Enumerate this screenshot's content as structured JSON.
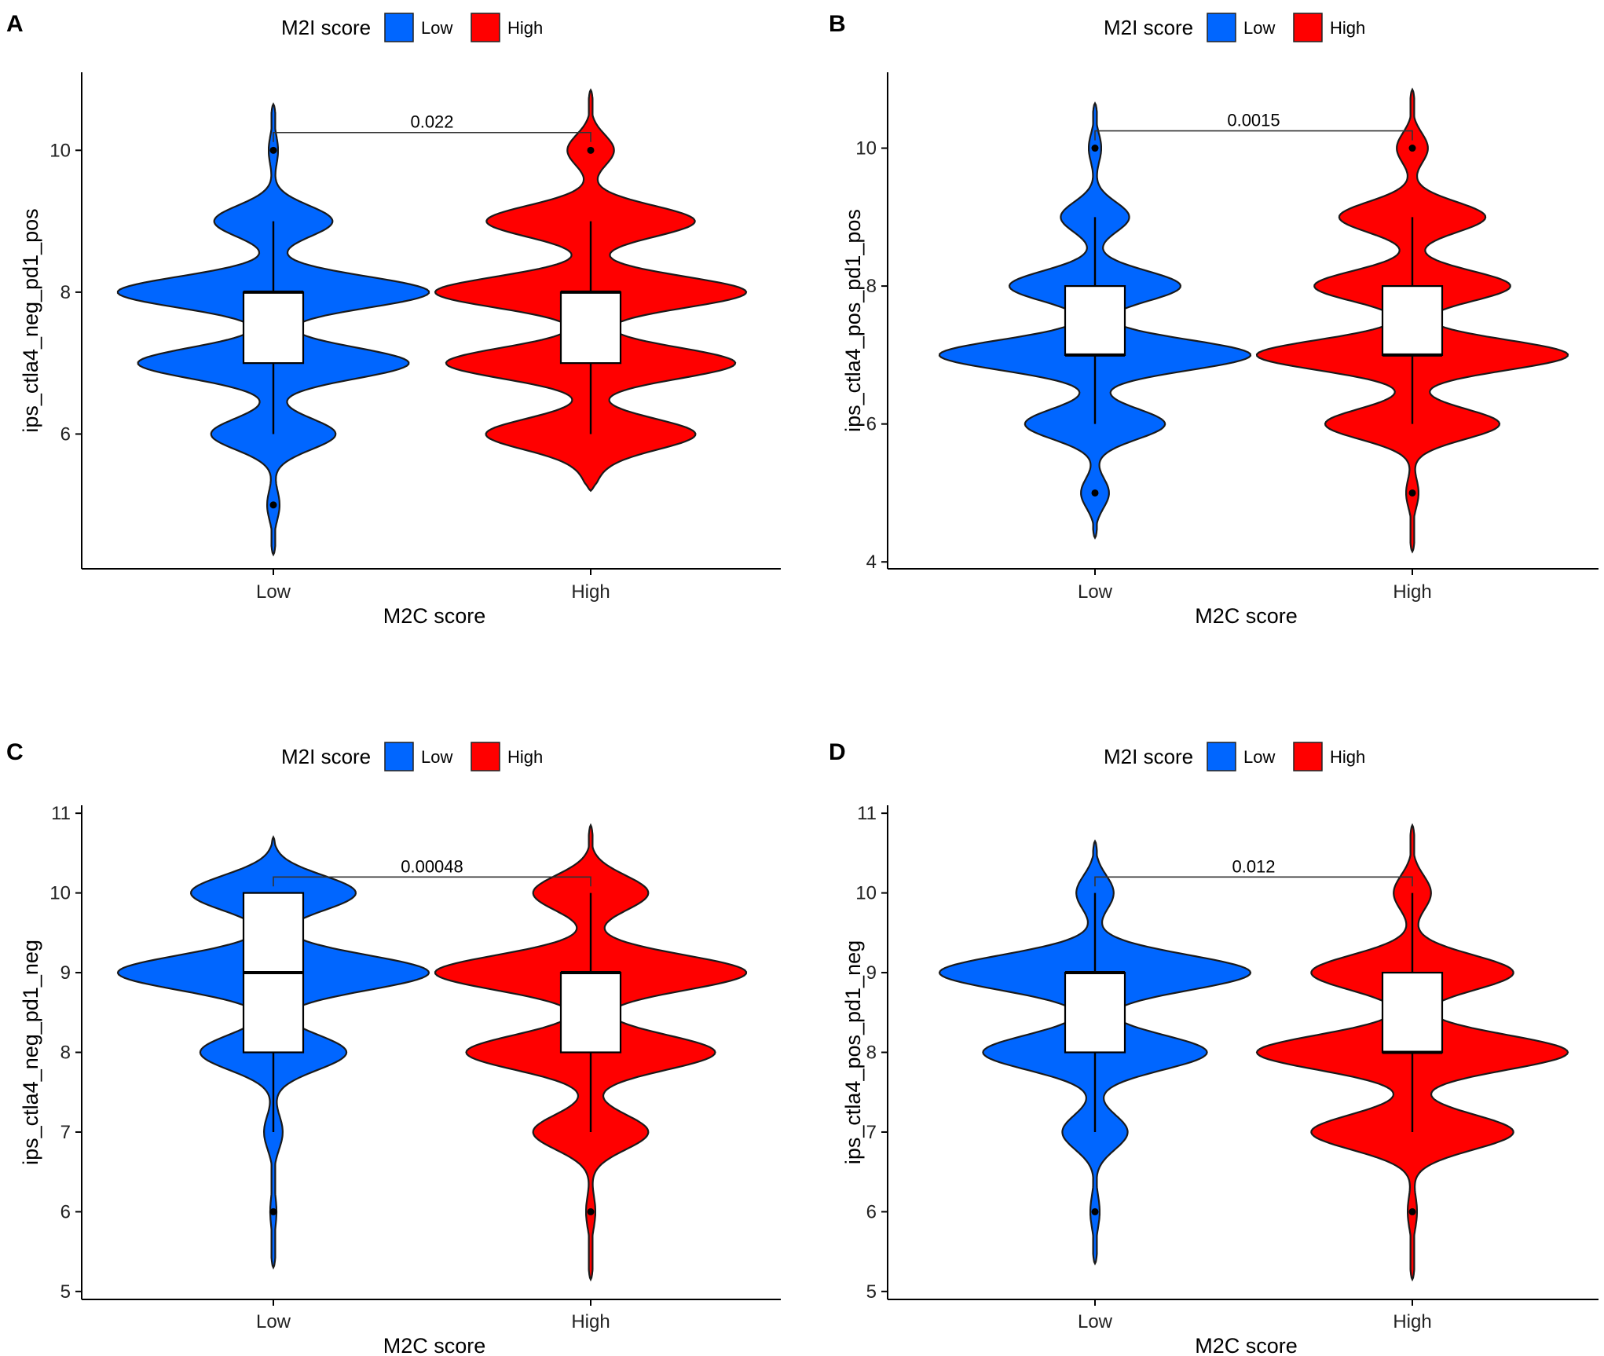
{
  "colors": {
    "Low": "#0066FF",
    "High": "#FF0000"
  },
  "legend": {
    "title": "M2I score",
    "entries": [
      "Low",
      "High"
    ]
  },
  "chart_data": [
    {
      "panel": "A",
      "type": "violin",
      "legend_title": "M2I score",
      "legend_entries": [
        "Low",
        "High"
      ],
      "xlabel": "M2C score",
      "ylabel": "ips_ctla4_neg_pd1_pos",
      "categories": [
        "Low",
        "High"
      ],
      "ylim": [
        4.1,
        11.1
      ],
      "yticks": [
        6,
        8,
        10
      ],
      "pvalue": "0.022",
      "bracket_y": 10.25,
      "groups": [
        {
          "name": "Low",
          "color": "#0066FF",
          "min": 4.3,
          "max": 10.65,
          "modes": [
            [
              10.0,
              0.03
            ],
            [
              9.0,
              0.38
            ],
            [
              8.0,
              1.0
            ],
            [
              7.0,
              0.87
            ],
            [
              6.0,
              0.4
            ],
            [
              5.0,
              0.04
            ]
          ],
          "box": {
            "q1": 7,
            "median": 8,
            "q3": 8,
            "whisker_low": 6,
            "whisker_high": 9
          },
          "outliers": [
            10,
            5
          ]
        },
        {
          "name": "High",
          "color": "#FF0000",
          "min": 5.2,
          "max": 10.85,
          "modes": [
            [
              10.0,
              0.15
            ],
            [
              9.0,
              0.67
            ],
            [
              8.0,
              1.0
            ],
            [
              7.0,
              0.93
            ],
            [
              6.0,
              0.67
            ],
            [
              5.5,
              0.05
            ]
          ],
          "box": {
            "q1": 7,
            "median": 8,
            "q3": 8,
            "whisker_low": 6,
            "whisker_high": 9
          },
          "outliers": [
            10
          ]
        }
      ]
    },
    {
      "panel": "B",
      "type": "violin",
      "legend_title": "M2I score",
      "legend_entries": [
        "Low",
        "High"
      ],
      "xlabel": "M2C score",
      "ylabel": "ips_ctla4_pos_pd1_pos",
      "categories": [
        "Low",
        "High"
      ],
      "ylim": [
        3.9,
        11.1
      ],
      "yticks": [
        4,
        6,
        8,
        10
      ],
      "pvalue": "0.0015",
      "bracket_y": 10.25,
      "groups": [
        {
          "name": "Low",
          "color": "#0066FF",
          "min": 4.35,
          "max": 10.65,
          "modes": [
            [
              10.0,
              0.04
            ],
            [
              9.0,
              0.22
            ],
            [
              8.0,
              0.55
            ],
            [
              7.0,
              1.0
            ],
            [
              6.0,
              0.45
            ],
            [
              5.0,
              0.09
            ]
          ],
          "box": {
            "q1": 7,
            "median": 7,
            "q3": 8,
            "whisker_low": 6,
            "whisker_high": 9
          },
          "outliers": [
            10,
            5
          ]
        },
        {
          "name": "High",
          "color": "#FF0000",
          "min": 4.15,
          "max": 10.85,
          "modes": [
            [
              10.0,
              0.1
            ],
            [
              9.0,
              0.47
            ],
            [
              8.0,
              0.63
            ],
            [
              7.0,
              1.0
            ],
            [
              6.0,
              0.56
            ],
            [
              5.0,
              0.04
            ]
          ],
          "box": {
            "q1": 7,
            "median": 7,
            "q3": 8,
            "whisker_low": 6,
            "whisker_high": 9
          },
          "outliers": [
            10,
            5
          ]
        }
      ]
    },
    {
      "panel": "C",
      "type": "violin",
      "legend_title": "M2I score",
      "legend_entries": [
        "Low",
        "High"
      ],
      "xlabel": "M2C score",
      "ylabel": "ips_ctla4_neg_pd1_neg",
      "categories": [
        "Low",
        "High"
      ],
      "ylim": [
        4.9,
        11.1
      ],
      "yticks": [
        5,
        6,
        7,
        8,
        9,
        10,
        11
      ],
      "pvalue": "0.00048",
      "bracket_y": 10.2,
      "groups": [
        {
          "name": "Low",
          "color": "#0066FF",
          "min": 5.3,
          "max": 10.7,
          "modes": [
            [
              10.0,
              0.53
            ],
            [
              9.0,
              1.0
            ],
            [
              8.0,
              0.47
            ],
            [
              7.0,
              0.06
            ],
            [
              6.0,
              0.02
            ]
          ],
          "box": {
            "q1": 8,
            "median": 9,
            "q3": 10,
            "whisker_low": 7,
            "whisker_high": 10
          },
          "outliers": [
            6
          ]
        },
        {
          "name": "High",
          "color": "#FF0000",
          "min": 5.15,
          "max": 10.85,
          "modes": [
            [
              10.0,
              0.37
            ],
            [
              9.0,
              1.0
            ],
            [
              8.0,
              0.8
            ],
            [
              7.0,
              0.37
            ],
            [
              6.0,
              0.03
            ]
          ],
          "box": {
            "q1": 8,
            "median": 9,
            "q3": 9,
            "whisker_low": 7,
            "whisker_high": 10
          },
          "outliers": [
            6
          ]
        }
      ]
    },
    {
      "panel": "D",
      "type": "violin",
      "legend_title": "M2I score",
      "legend_entries": [
        "Low",
        "High"
      ],
      "xlabel": "M2C score",
      "ylabel": "ips_ctla4_pos_pd1_neg",
      "categories": [
        "Low",
        "High"
      ],
      "ylim": [
        4.9,
        11.1
      ],
      "yticks": [
        5,
        6,
        7,
        8,
        9,
        10,
        11
      ],
      "pvalue": "0.012",
      "bracket_y": 10.2,
      "groups": [
        {
          "name": "Low",
          "color": "#0066FF",
          "min": 5.35,
          "max": 10.65,
          "modes": [
            [
              10.0,
              0.12
            ],
            [
              9.0,
              1.0
            ],
            [
              8.0,
              0.72
            ],
            [
              7.0,
              0.21
            ],
            [
              6.0,
              0.03
            ]
          ],
          "box": {
            "q1": 8,
            "median": 9,
            "q3": 9,
            "whisker_low": 7,
            "whisker_high": 10
          },
          "outliers": [
            6
          ]
        },
        {
          "name": "High",
          "color": "#FF0000",
          "min": 5.15,
          "max": 10.85,
          "modes": [
            [
              10.0,
              0.12
            ],
            [
              9.0,
              0.65
            ],
            [
              8.0,
              1.0
            ],
            [
              7.0,
              0.65
            ],
            [
              6.0,
              0.03
            ]
          ],
          "box": {
            "q1": 8,
            "median": 8,
            "q3": 9,
            "whisker_low": 7,
            "whisker_high": 10
          },
          "outliers": [
            6
          ]
        }
      ]
    }
  ]
}
